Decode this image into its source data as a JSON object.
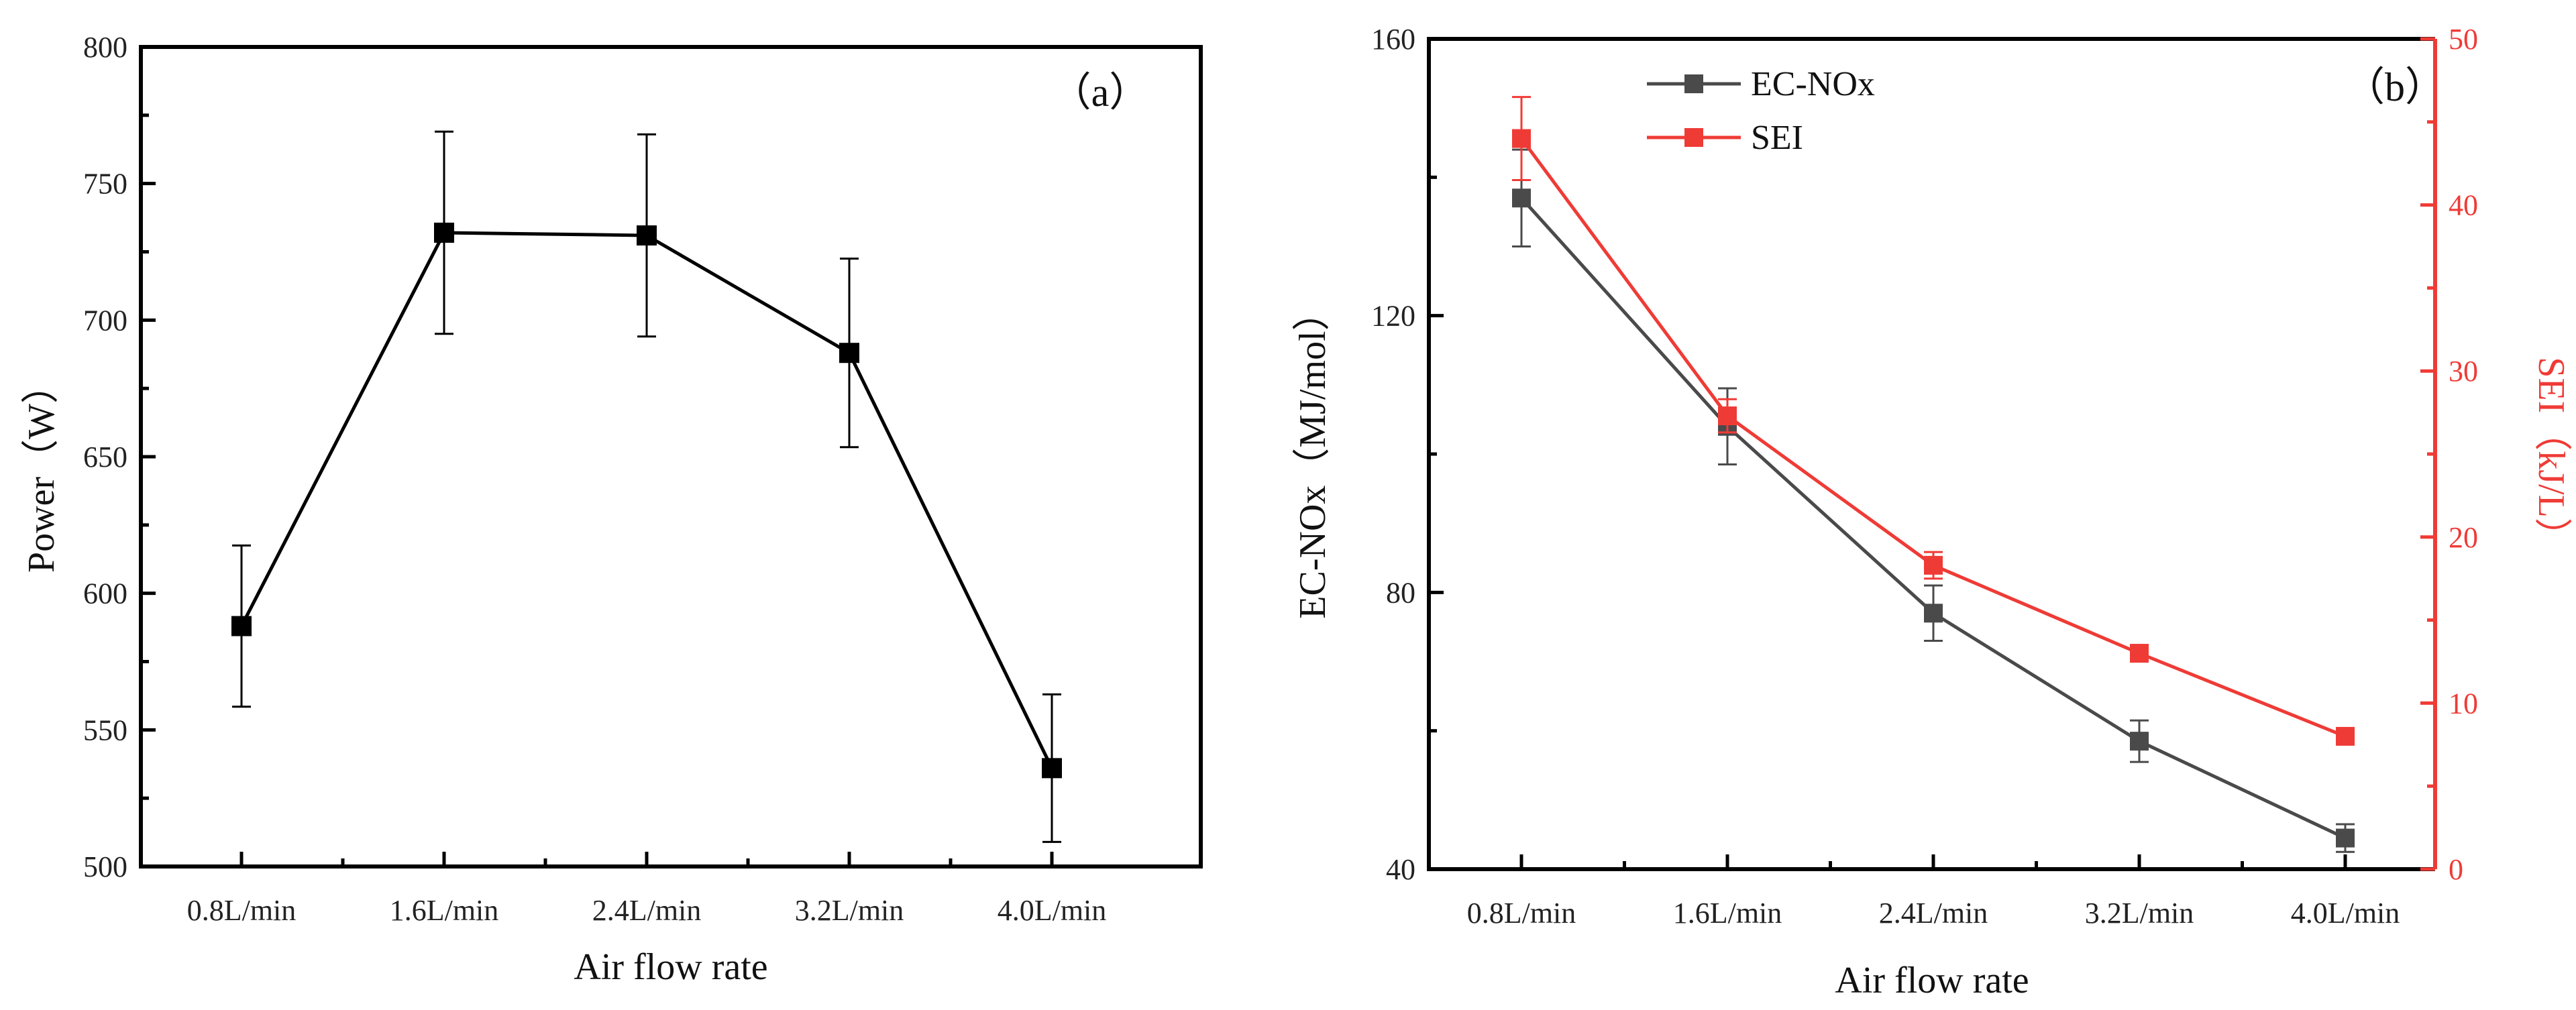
{
  "chart_data": [
    {
      "type": "line",
      "panel_label": "（a）",
      "xlabel": "Air flow rate",
      "ylabel": "Power（W）",
      "categories": [
        "0.8L/min",
        "1.6L/min",
        "2.4L/min",
        "3.2L/min",
        "4.0L/min"
      ],
      "ylim": [
        500,
        800
      ],
      "yticks": [
        500,
        550,
        600,
        650,
        700,
        750,
        800
      ],
      "series": [
        {
          "name": "Power",
          "color": "#000000",
          "values": [
            588,
            732,
            731,
            688,
            536
          ],
          "err": [
            29.5,
            37,
            37,
            34.5,
            27
          ]
        }
      ]
    },
    {
      "type": "line",
      "panel_label": "（b）",
      "xlabel": "Air flow rate",
      "ylabel": "EC-NOx（MJ/mol）",
      "ylabel_right": "SEI（kJ/L）",
      "categories": [
        "0.8L/min",
        "1.6L/min",
        "2.4L/min",
        "3.2L/min",
        "4.0L/min"
      ],
      "ylim": [
        40,
        160
      ],
      "yticks": [
        40,
        80,
        120,
        160
      ],
      "ylim_right": [
        0,
        50
      ],
      "yticks_right": [
        0,
        10,
        20,
        30,
        40,
        50
      ],
      "legend_position": "top-left",
      "series": [
        {
          "name": "EC-NOx",
          "axis": "left",
          "color": "#4a4a4a",
          "values": [
            137,
            104,
            77,
            58.5,
            44.5
          ],
          "err": [
            7,
            5.5,
            4,
            3,
            2
          ]
        },
        {
          "name": "SEI",
          "axis": "right",
          "color": "#ef3b36",
          "values": [
            44,
            27.3,
            18.3,
            13,
            8
          ],
          "err": [
            2.5,
            1,
            0.8,
            0.5,
            0.2
          ]
        }
      ]
    }
  ]
}
